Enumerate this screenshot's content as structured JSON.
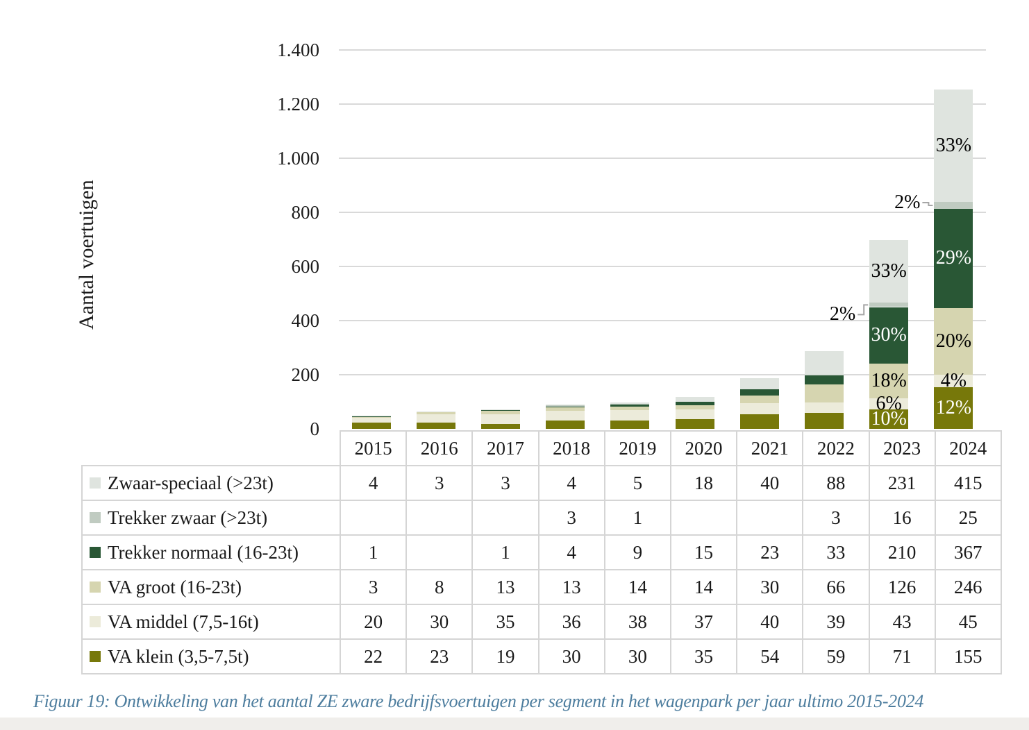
{
  "caption": "Figuur 19: Ontwikkeling van het aantal ZE zware bedrijfsvoertuigen per segment in het wagenpark per jaar ultimo 2015-2024",
  "chart_data": {
    "type": "bar",
    "stacked": true,
    "title": "",
    "xlabel": "",
    "ylabel": "Aantal voertuigen",
    "ylim": [
      0,
      1400
    ],
    "ytick_step": 200,
    "yticks": [
      {
        "value": 0,
        "label": "0"
      },
      {
        "value": 200,
        "label": "200"
      },
      {
        "value": 400,
        "label": "400"
      },
      {
        "value": 600,
        "label": "600"
      },
      {
        "value": 800,
        "label": "800"
      },
      {
        "value": 1000,
        "label": "1.000"
      },
      {
        "value": 1200,
        "label": "1.200"
      },
      {
        "value": 1400,
        "label": "1.400"
      }
    ],
    "grid": true,
    "legend_position": "table-left",
    "categories": [
      "2015",
      "2016",
      "2017",
      "2018",
      "2019",
      "2020",
      "2021",
      "2022",
      "2023",
      "2024"
    ],
    "series": [
      {
        "name": "VA klein (3,5-7,5t)",
        "color": "#77780a",
        "values": [
          22,
          23,
          19,
          30,
          30,
          35,
          54,
          59,
          71,
          155
        ]
      },
      {
        "name": "VA middel (7,5-16t)",
        "color": "#ecebda",
        "values": [
          20,
          30,
          35,
          36,
          38,
          37,
          40,
          39,
          43,
          45
        ]
      },
      {
        "name": "VA groot (16-23t)",
        "color": "#d6d5b0",
        "values": [
          3,
          8,
          13,
          13,
          14,
          14,
          30,
          66,
          126,
          246
        ]
      },
      {
        "name": "Trekker normaal (16-23t)",
        "color": "#295735",
        "values": [
          1,
          0,
          1,
          4,
          9,
          15,
          23,
          33,
          210,
          367
        ]
      },
      {
        "name": "Trekker zwaar (>23t)",
        "color": "#c0cbc1",
        "values": [
          0,
          0,
          0,
          3,
          1,
          0,
          0,
          3,
          16,
          25
        ]
      },
      {
        "name": "Zwaar-speciaal (>23t)",
        "color": "#dfe4df",
        "values": [
          4,
          3,
          3,
          4,
          5,
          18,
          40,
          88,
          231,
          415
        ]
      }
    ],
    "bar_labels": [
      {
        "category": "2023",
        "labels": [
          {
            "series": "Zwaar-speciaal (>23t)",
            "text": "33%",
            "placement": "inside",
            "color": "#000000"
          },
          {
            "series": "Trekker zwaar (>23t)",
            "text": "2%",
            "placement": "leader-left",
            "color": "#000000",
            "dy": 14
          },
          {
            "series": "Trekker normaal (16-23t)",
            "text": "30%",
            "placement": "inside",
            "color": "#ffffff"
          },
          {
            "series": "VA groot (16-23t)",
            "text": "18%",
            "placement": "inside",
            "color": "#000000"
          },
          {
            "series": "VA middel (7,5-16t)",
            "text": "6%",
            "placement": "inside",
            "color": "#000000"
          },
          {
            "series": "VA klein (3,5-7,5t)",
            "text": "10%",
            "placement": "inside",
            "color": "#ffffff"
          }
        ]
      },
      {
        "category": "2024",
        "labels": [
          {
            "series": "Zwaar-speciaal (>23t)",
            "text": "33%",
            "placement": "inside",
            "color": "#000000"
          },
          {
            "series": "Trekker zwaar (>23t)",
            "text": "2%",
            "placement": "leader-left",
            "color": "#000000",
            "dy": -4
          },
          {
            "series": "Trekker normaal (16-23t)",
            "text": "29%",
            "placement": "inside",
            "color": "#ffffff"
          },
          {
            "series": "VA groot (16-23t)",
            "text": "20%",
            "placement": "inside",
            "color": "#000000"
          },
          {
            "series": "VA middel (7,5-16t)",
            "text": "4%",
            "placement": "inside",
            "color": "#000000"
          },
          {
            "series": "VA klein (3,5-7,5t)",
            "text": "12%",
            "placement": "inside",
            "color": "#ffffff"
          }
        ]
      }
    ]
  },
  "table": {
    "header_years": [
      "2015",
      "2016",
      "2017",
      "2018",
      "2019",
      "2020",
      "2021",
      "2022",
      "2023",
      "2024"
    ],
    "rows": [
      {
        "label": "Zwaar-speciaal (>23t)",
        "swatch": "#dfe4df",
        "values": [
          "4",
          "3",
          "3",
          "4",
          "5",
          "18",
          "40",
          "88",
          "231",
          "415"
        ]
      },
      {
        "label": "Trekker zwaar (>23t)",
        "swatch": "#c0cbc1",
        "values": [
          "",
          "",
          "",
          "3",
          "1",
          "",
          "",
          "3",
          "16",
          "25"
        ]
      },
      {
        "label": "Trekker normaal (16-23t)",
        "swatch": "#295735",
        "values": [
          "1",
          "",
          "1",
          "4",
          "9",
          "15",
          "23",
          "33",
          "210",
          "367"
        ]
      },
      {
        "label": "VA groot (16-23t)",
        "swatch": "#d6d5b0",
        "values": [
          "3",
          "8",
          "13",
          "13",
          "14",
          "14",
          "30",
          "66",
          "126",
          "246"
        ]
      },
      {
        "label": "VA middel (7,5-16t)",
        "swatch": "#ecebda",
        "values": [
          "20",
          "30",
          "35",
          "36",
          "38",
          "37",
          "40",
          "39",
          "43",
          "45"
        ]
      },
      {
        "label": "VA klein (3,5-7,5t)",
        "swatch": "#77780a",
        "values": [
          "22",
          "23",
          "19",
          "30",
          "30",
          "35",
          "54",
          "59",
          "71",
          "155"
        ]
      }
    ]
  }
}
